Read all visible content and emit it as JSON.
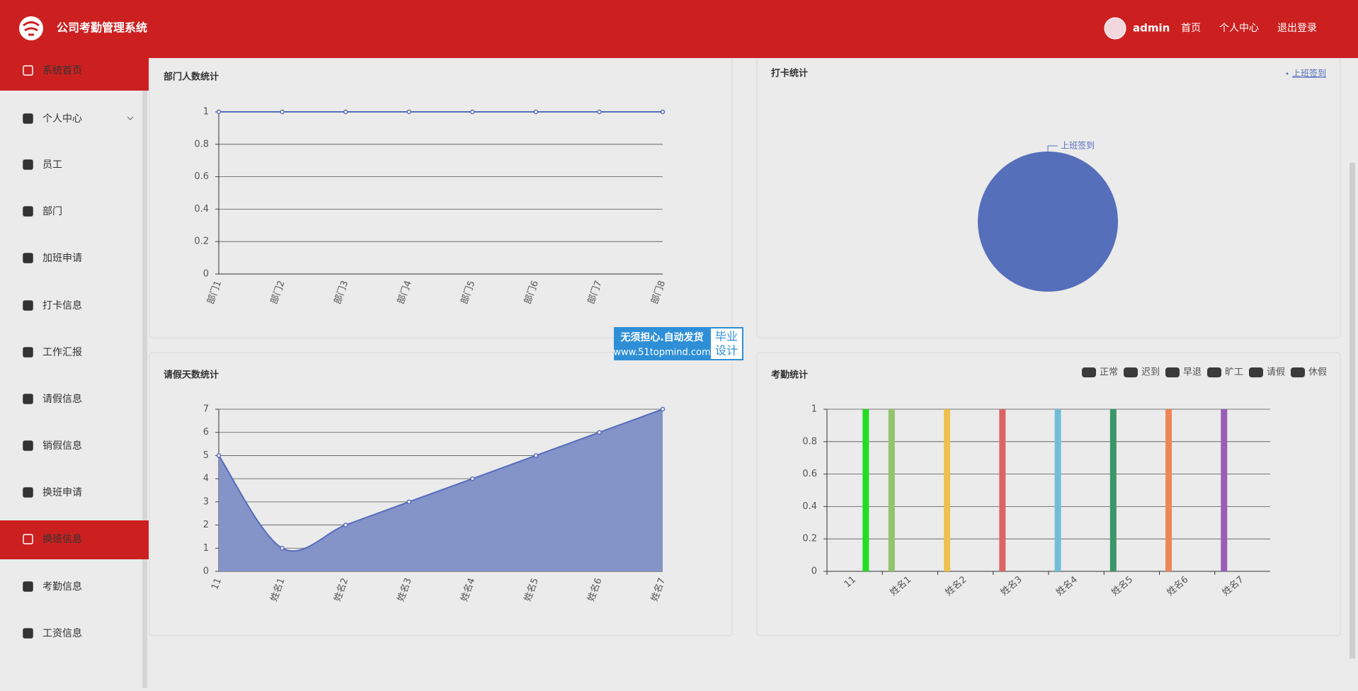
{
  "header": {
    "title": "公司考勤管理系统",
    "user": "admin",
    "links": [
      "首页",
      "个人中心",
      "退出登录"
    ]
  },
  "sidebar": {
    "items": [
      "系统首页",
      "个人中心",
      "员工",
      "部门",
      "加班申请",
      "打卡信息",
      "工作汇报",
      "请假信息",
      "销假信息",
      "换班申请",
      "换班信息",
      "考勤信息",
      "工资信息"
    ]
  },
  "watermark": {
    "line1": "无须担心.自动发货",
    "line2": "www.51topmind.com",
    "badge": [
      "毕业",
      "设计"
    ]
  },
  "chart_data": [
    {
      "type": "line",
      "title": "部门人数统计",
      "categories": [
        "部门1",
        "部门2",
        "部门3",
        "部门4",
        "部门5",
        "部门6",
        "部门7",
        "部门8"
      ],
      "values": [
        1,
        1,
        1,
        1,
        1,
        1,
        1,
        1
      ],
      "color": "#566cbc",
      "ylim": [
        0,
        1
      ],
      "yticks": [
        0,
        0.2,
        0.4,
        0.6,
        0.8,
        1
      ],
      "grid": true
    },
    {
      "type": "pie",
      "title": "打卡统计",
      "categories": [
        "上班签到"
      ],
      "values": [
        1
      ],
      "color": "#566fbb"
    },
    {
      "type": "line",
      "title": "请假天数统计",
      "categories": [
        "11",
        "姓名1",
        "姓名2",
        "姓名3",
        "姓名4",
        "姓名5",
        "姓名6",
        "姓名7"
      ],
      "values": [
        5,
        1,
        2,
        3,
        4,
        5,
        6,
        7
      ],
      "color": "#566cbc",
      "area": true,
      "area_color": "#8494c9",
      "smooth": true,
      "ylim": [
        0,
        7
      ],
      "yticks": [
        0,
        1,
        2,
        3,
        4,
        5,
        6,
        7
      ],
      "grid": true
    },
    {
      "type": "bar",
      "title": "考勤统计",
      "categories": [
        "11",
        "姓名1",
        "姓名2",
        "姓名3",
        "姓名4",
        "姓名5",
        "姓名6",
        "姓名7"
      ],
      "series": [
        {
          "name": "正常",
          "color": "#3a3a3a",
          "values": [
            0,
            1,
            1,
            1,
            1,
            1,
            1,
            1
          ]
        },
        {
          "name": "迟到",
          "color": "#3a3a3a",
          "values": [
            0,
            0,
            0,
            0,
            0,
            0,
            0,
            0
          ]
        },
        {
          "name": "早退",
          "color": "#3a3a3a",
          "values": [
            0,
            0,
            0,
            0,
            0,
            0,
            0,
            0
          ]
        },
        {
          "name": "旷工",
          "color": "#3a3a3a",
          "values": [
            0,
            0,
            0,
            0,
            0,
            0,
            0,
            0
          ]
        },
        {
          "name": "请假",
          "color": "#3a3a3a",
          "values": [
            1,
            0,
            0,
            0,
            0,
            0,
            0,
            0
          ]
        },
        {
          "name": "休假",
          "color": "#3a3a3a",
          "values": [
            0,
            0,
            0,
            0,
            0,
            0,
            0,
            0
          ]
        }
      ],
      "colors": [
        "#22dd22",
        "#91c46c",
        "#eec04e",
        "#dd6466",
        "#72bed8",
        "#3b9669",
        "#ee8656",
        "#9a5fb4"
      ],
      "ylim": [
        0,
        1
      ],
      "yticks": [
        0,
        0.2,
        0.4,
        0.6,
        0.8,
        1
      ],
      "grid": true
    }
  ]
}
